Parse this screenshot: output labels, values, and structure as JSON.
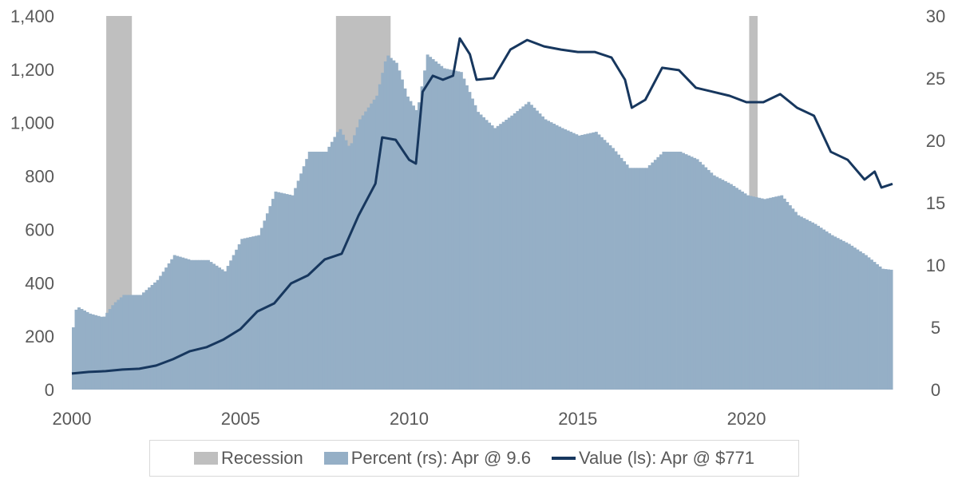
{
  "chart_data": {
    "type": "bar+line",
    "title": "",
    "xlabel": "",
    "ylabel_left": "",
    "ylabel_right": "",
    "x_ticks": [
      "2000",
      "2005",
      "2010",
      "2015",
      "2020"
    ],
    "xlim": [
      2000,
      2024.33
    ],
    "y_left": {
      "lim": [
        0,
        1400
      ],
      "ticks": [
        "0",
        "200",
        "400",
        "600",
        "800",
        "1,000",
        "1,200",
        "1,400"
      ]
    },
    "y_right": {
      "lim": [
        0,
        30
      ],
      "ticks": [
        "0",
        "5",
        "10",
        "15",
        "20",
        "25",
        "30"
      ]
    },
    "grid": false,
    "legend_position": "bottom",
    "colors": {
      "recession": "#bfbfbf",
      "percent": "#95afc6",
      "value": "#17375e"
    },
    "recessions": [
      [
        2001.02,
        2001.78
      ],
      [
        2007.83,
        2009.45
      ],
      [
        2020.08,
        2020.33
      ]
    ],
    "series": [
      {
        "name": "Percent (rs): Apr @ 9.6",
        "axis": "right",
        "kind": "bar",
        "x": [
          2000,
          2000.1,
          2000.5,
          2000.9,
          2001.2,
          2001.5,
          2002,
          2002.5,
          2003,
          2003.5,
          2004,
          2004.5,
          2005,
          2005.5,
          2006,
          2006.5,
          2007,
          2007.5,
          2007.9,
          2008.2,
          2008.5,
          2009,
          2009.3,
          2009.6,
          2009.9,
          2010.2,
          2010.5,
          2011,
          2011.5,
          2012,
          2012.5,
          2013,
          2013.5,
          2014,
          2014.5,
          2015,
          2015.5,
          2016,
          2016.5,
          2017,
          2017.5,
          2018,
          2018.5,
          2019,
          2019.5,
          2020,
          2020.5,
          2021,
          2021.5,
          2022,
          2022.5,
          2023,
          2023.5,
          2024,
          2024.33
        ],
        "values": [
          5.0,
          6.7,
          6.1,
          5.8,
          6.9,
          7.6,
          7.6,
          8.8,
          10.8,
          10.4,
          10.4,
          9.5,
          12.1,
          12.4,
          15.9,
          15.6,
          19.1,
          19.1,
          21.0,
          19.4,
          21.7,
          23.6,
          26.9,
          26.2,
          23.6,
          22.3,
          26.9,
          25.8,
          25.5,
          22.3,
          21.0,
          22.0,
          23.1,
          21.7,
          21.0,
          20.4,
          20.7,
          19.4,
          17.8,
          17.8,
          19.1,
          19.1,
          18.5,
          17.2,
          16.5,
          15.6,
          15.3,
          15.6,
          14.0,
          13.3,
          12.4,
          11.7,
          10.8,
          9.7,
          9.6
        ]
      },
      {
        "name": "Value (ls): Apr @ $771",
        "axis": "left",
        "kind": "line",
        "x": [
          2000,
          2000.5,
          2001,
          2001.5,
          2002,
          2002.5,
          2003,
          2003.5,
          2004,
          2004.5,
          2005,
          2005.5,
          2006,
          2006.5,
          2007,
          2007.5,
          2008,
          2008.5,
          2009,
          2009.2,
          2009.6,
          2010,
          2010.2,
          2010.4,
          2010.7,
          2011,
          2011.3,
          2011.5,
          2011.8,
          2012,
          2012.5,
          2013,
          2013.5,
          2014,
          2014.5,
          2015,
          2015.5,
          2016,
          2016.4,
          2016.6,
          2017,
          2017.5,
          2018,
          2018.5,
          2019,
          2019.5,
          2020,
          2020.5,
          2021,
          2021.5,
          2022,
          2022.5,
          2023,
          2023.5,
          2023.8,
          2024,
          2024.33
        ],
        "values": [
          60,
          66,
          69,
          75,
          78,
          90,
          114,
          144,
          159,
          188,
          227,
          293,
          323,
          398,
          428,
          488,
          509,
          652,
          772,
          945,
          936,
          861,
          847,
          1116,
          1176,
          1161,
          1176,
          1316,
          1256,
          1161,
          1167,
          1274,
          1310,
          1286,
          1274,
          1265,
          1265,
          1244,
          1161,
          1056,
          1086,
          1206,
          1197,
          1131,
          1116,
          1101,
          1077,
          1077,
          1107,
          1056,
          1026,
          891,
          861,
          787,
          817,
          757,
          771
        ]
      }
    ]
  },
  "legend": {
    "recession": "Recession",
    "percent": "Percent (rs): Apr @ 9.6",
    "value": "Value (ls): Apr @ $771"
  }
}
